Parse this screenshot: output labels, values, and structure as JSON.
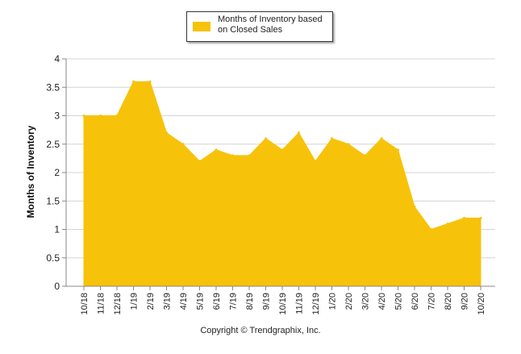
{
  "chart_data": {
    "type": "area",
    "categories": [
      "10/18",
      "11/18",
      "12/18",
      "1/19",
      "2/19",
      "3/19",
      "4/19",
      "5/19",
      "6/19",
      "7/19",
      "8/19",
      "9/19",
      "10/19",
      "11/19",
      "12/19",
      "1/20",
      "2/20",
      "3/20",
      "4/20",
      "5/20",
      "6/20",
      "7/20",
      "8/20",
      "9/20",
      "10/20"
    ],
    "series": [
      {
        "name": "Months of Inventory based on Closed Sales",
        "values": [
          3.0,
          3.0,
          3.0,
          3.6,
          3.6,
          2.7,
          2.5,
          2.2,
          2.4,
          2.3,
          2.3,
          2.6,
          2.4,
          2.7,
          2.2,
          2.6,
          2.5,
          2.3,
          2.6,
          2.4,
          1.4,
          1.0,
          1.1,
          1.2,
          1.2
        ],
        "color": "#f7c20a"
      }
    ],
    "title": "",
    "xlabel": "",
    "ylabel": "Months of Inventory",
    "ylim": [
      0,
      4
    ],
    "yticks": [
      "0",
      "0.5",
      "1",
      "1.5",
      "2",
      "2.5",
      "3",
      "3.5",
      "4"
    ],
    "grid": "horizontal",
    "legend_position": "top-center"
  },
  "legend": {
    "label": "Months of Inventory based on Closed Sales"
  },
  "footer": {
    "copyright": "Copyright © Trendgraphix, Inc."
  }
}
